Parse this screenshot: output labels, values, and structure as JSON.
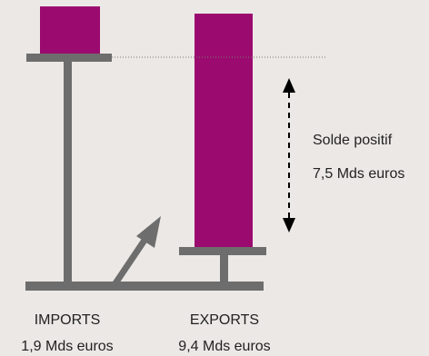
{
  "colors": {
    "background": "#ebe8e5",
    "bar_fill": "#9b0a6f",
    "structure": "#6d6d6d",
    "text": "#222222"
  },
  "chart_data": {
    "type": "bar",
    "categories": [
      "IMPORTS",
      "EXPORTS"
    ],
    "values": [
      1.9,
      9.4
    ],
    "value_labels": [
      "1,9 Mds euros",
      "9,4 Mds euros"
    ],
    "unit": "Mds euros",
    "annotation": {
      "title": "Solde positif",
      "value_label": "7,5 Mds euros",
      "value": 7.5
    },
    "balance_diagram": true,
    "grid": false
  }
}
